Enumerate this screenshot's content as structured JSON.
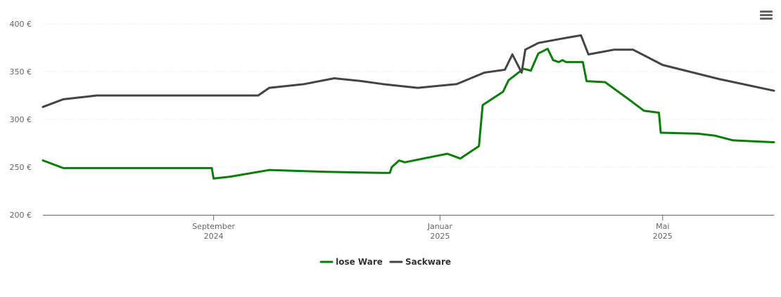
{
  "chart_data": {
    "type": "line",
    "x_start": "2024-06-01",
    "x_end": "2025-06-30",
    "ylim": [
      200,
      400
    ],
    "y_ticks": [
      {
        "value": 400,
        "label": "400 €"
      },
      {
        "value": 350,
        "label": "350 €"
      },
      {
        "value": 300,
        "label": "300 €"
      },
      {
        "value": 250,
        "label": "250 €"
      },
      {
        "value": 200,
        "label": "200 €"
      }
    ],
    "x_ticks": [
      {
        "date": "2024-09-01",
        "month": "September",
        "year": "2024"
      },
      {
        "date": "2025-01-01",
        "month": "Januar",
        "year": "2025"
      },
      {
        "date": "2025-05-01",
        "month": "Mai",
        "year": "2025"
      }
    ],
    "grid": "horizontal",
    "legend_position": "bottom-center",
    "series": [
      {
        "name": "lose Ware",
        "color": "#0a7d0a",
        "points": [
          [
            "2024-06-01",
            257
          ],
          [
            "2024-06-12",
            249
          ],
          [
            "2024-07-01",
            249
          ],
          [
            "2024-08-01",
            249
          ],
          [
            "2024-08-31",
            249
          ],
          [
            "2024-09-01",
            238
          ],
          [
            "2024-09-10",
            240
          ],
          [
            "2024-10-01",
            247
          ],
          [
            "2024-11-01",
            245
          ],
          [
            "2024-12-01",
            244
          ],
          [
            "2024-12-05",
            244
          ],
          [
            "2024-12-06",
            250
          ],
          [
            "2024-12-10",
            257
          ],
          [
            "2024-12-13",
            255
          ],
          [
            "2024-12-23",
            259
          ],
          [
            "2025-01-05",
            264
          ],
          [
            "2025-01-12",
            259
          ],
          [
            "2025-01-22",
            272
          ],
          [
            "2025-01-24",
            315
          ],
          [
            "2025-02-04",
            329
          ],
          [
            "2025-02-07",
            341
          ],
          [
            "2025-02-15",
            353
          ],
          [
            "2025-02-19",
            351
          ],
          [
            "2025-02-23",
            369
          ],
          [
            "2025-02-28",
            374
          ],
          [
            "2025-03-03",
            362
          ],
          [
            "2025-03-06",
            360
          ],
          [
            "2025-03-08",
            362
          ],
          [
            "2025-03-10",
            360
          ],
          [
            "2025-03-19",
            360
          ],
          [
            "2025-03-21",
            340
          ],
          [
            "2025-03-31",
            339
          ],
          [
            "2025-04-12",
            322
          ],
          [
            "2025-04-21",
            309
          ],
          [
            "2025-04-29",
            307
          ],
          [
            "2025-04-30",
            286
          ],
          [
            "2025-05-20",
            285
          ],
          [
            "2025-05-29",
            283
          ],
          [
            "2025-06-08",
            278
          ],
          [
            "2025-06-30",
            276
          ]
        ]
      },
      {
        "name": "Sackware",
        "color": "#434348",
        "points": [
          [
            "2024-06-01",
            313
          ],
          [
            "2024-06-12",
            321
          ],
          [
            "2024-06-30",
            325
          ],
          [
            "2024-07-31",
            325
          ],
          [
            "2024-08-31",
            325
          ],
          [
            "2024-09-25",
            325
          ],
          [
            "2024-10-01",
            333
          ],
          [
            "2024-10-20",
            337
          ],
          [
            "2024-11-05",
            343
          ],
          [
            "2024-11-20",
            340
          ],
          [
            "2024-12-01",
            337
          ],
          [
            "2024-12-20",
            333
          ],
          [
            "2025-01-10",
            337
          ],
          [
            "2025-01-25",
            349
          ],
          [
            "2025-02-05",
            352
          ],
          [
            "2025-02-09",
            368
          ],
          [
            "2025-02-14",
            349
          ],
          [
            "2025-02-16",
            373
          ],
          [
            "2025-02-23",
            380
          ],
          [
            "2025-03-06",
            384
          ],
          [
            "2025-03-12",
            386
          ],
          [
            "2025-03-18",
            388
          ],
          [
            "2025-03-22",
            368
          ],
          [
            "2025-04-05",
            373
          ],
          [
            "2025-04-15",
            373
          ],
          [
            "2025-05-01",
            357
          ],
          [
            "2025-06-01",
            342
          ],
          [
            "2025-06-30",
            330
          ]
        ]
      }
    ]
  },
  "toolbar": {
    "menu_icon": "hamburger-menu-icon"
  }
}
